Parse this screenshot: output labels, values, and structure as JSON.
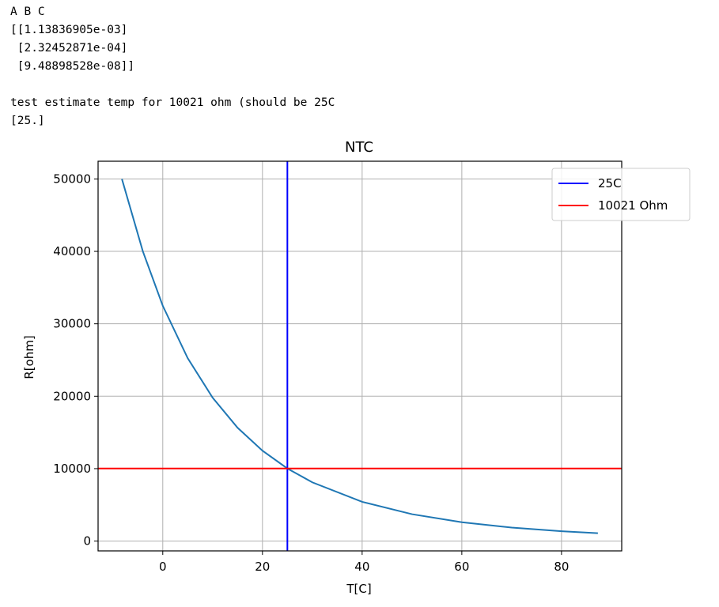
{
  "output": [
    [
      "A B C",
      "[[1.13836905e-03]",
      " [2.32452871e-04]",
      " [9.48898528e-08]]"
    ],
    [
      "test estimate temp for 10021 ohm (should be 25C",
      "[25.]"
    ]
  ],
  "chart_data": {
    "type": "line",
    "title": "NTC",
    "x_label": "T[C]",
    "y_label": "R[ohm]",
    "x": [
      -8.2,
      -4,
      0,
      5,
      10,
      15,
      20,
      25,
      30,
      40,
      50,
      60,
      70,
      80,
      87.3
    ],
    "series": [
      {
        "color": "#1f77b4",
        "values": [
          50000,
          40010,
          32485,
          25250,
          19800,
          15650,
          12480,
          10021,
          8110,
          5420,
          3710,
          2600,
          1860,
          1355,
          1090
        ]
      }
    ],
    "reference_lines": [
      {
        "name": "25C",
        "color": "#0000ff",
        "orientation": "vertical",
        "value": 25
      },
      {
        "name": "10021 Ohm",
        "color": "#ff0000",
        "orientation": "horizontal",
        "value": 10021
      }
    ],
    "xlim": [
      -12.98,
      92.08
    ],
    "ylim": [
      -1356,
      52446
    ],
    "xticks": [
      0,
      20,
      40,
      60,
      80
    ],
    "yticks": [
      0,
      10000,
      20000,
      30000,
      40000,
      50000
    ],
    "grid": true,
    "legend": "upper right"
  }
}
